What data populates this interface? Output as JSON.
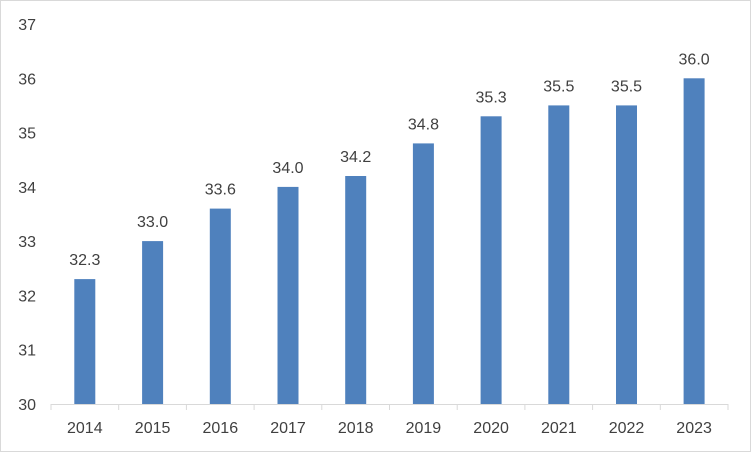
{
  "chart_data": {
    "type": "bar",
    "title": "",
    "xlabel": "",
    "ylabel": "",
    "categories": [
      "2014",
      "2015",
      "2016",
      "2017",
      "2018",
      "2019",
      "2020",
      "2021",
      "2022",
      "2023"
    ],
    "values": [
      32.3,
      33.0,
      33.6,
      34.0,
      34.2,
      34.8,
      35.3,
      35.5,
      35.5,
      36.0
    ],
    "data_labels": [
      "32.3",
      "33.0",
      "33.6",
      "34.0",
      "34.2",
      "34.8",
      "35.3",
      "35.5",
      "35.5",
      "36.0"
    ],
    "ylim": [
      30,
      37
    ],
    "yticks": [
      "30",
      "31",
      "32",
      "33",
      "34",
      "35",
      "36",
      "37"
    ],
    "grid": false,
    "legend": "none",
    "bar_color": "#4f81bd",
    "axis_color": "#d9d9d9",
    "text_color": "#404040"
  }
}
